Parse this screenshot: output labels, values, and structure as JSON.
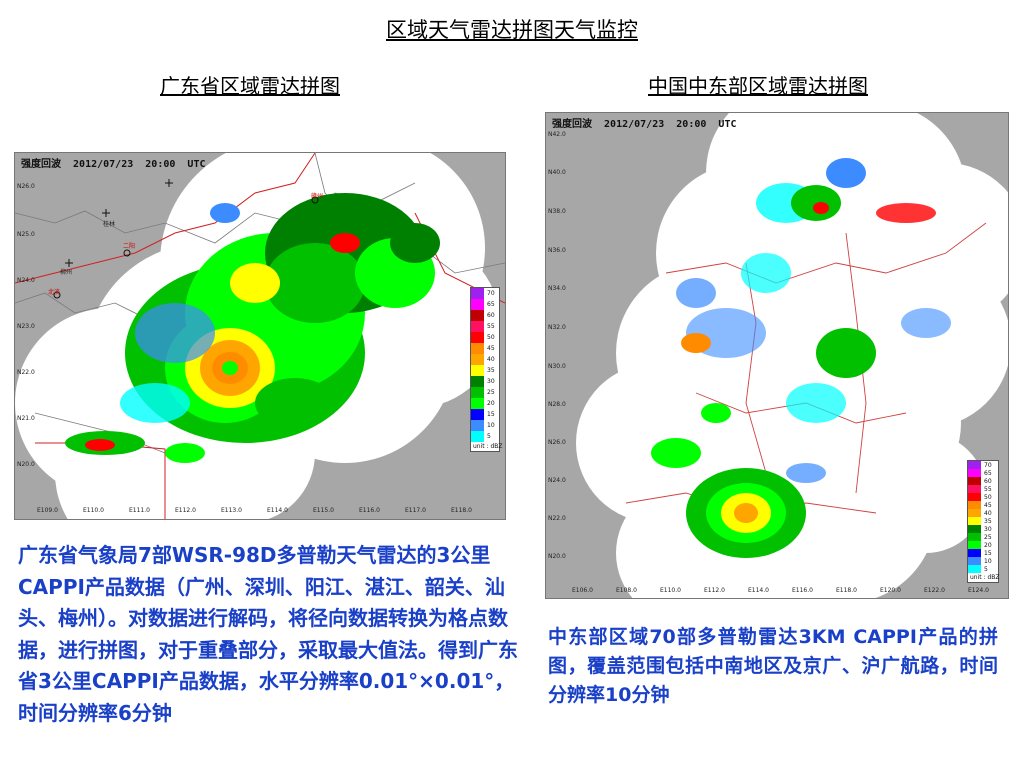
{
  "slide": {
    "title": "区域天气雷达拼图天气监控"
  },
  "left_panel": {
    "subtitle": "广东省区域雷达拼图",
    "map_header": "强度回波  2012/07/23  20:00  UTC",
    "legend_values": [
      "70",
      "65",
      "60",
      "55",
      "50",
      "45",
      "40",
      "35",
      "30",
      "25",
      "20",
      "15",
      "10",
      "5"
    ],
    "legend_unit": "unit : dBZ",
    "x_ticks": [
      "E109.0",
      "E110.0",
      "E111.0",
      "E112.0",
      "E113.0",
      "E114.0",
      "E115.0",
      "E116.0",
      "E117.0",
      "E118.0"
    ],
    "y_ticks": [
      "N26.0",
      "N25.0",
      "N24.0",
      "N23.0",
      "N22.0",
      "N21.0",
      "N20.0"
    ],
    "cities": [
      "桂林",
      "柳州",
      "二阳",
      "北流",
      "赣州"
    ],
    "description": "广东省气象局7部WSR-98D多普勒天气雷达的3公里CAPPI产品数据（广州、深圳、阳江、湛江、韶关、汕头、梅州）。对数据进行解码，将径向数据转换为格点数据，进行拼图，对于重叠部分，采取最大值法。得到广东省3公里CAPPI产品数据，水平分辨率0.01°×0.01°，时间分辨率6分钟"
  },
  "right_panel": {
    "subtitle": "中国中东部区域雷达拼图",
    "map_header": "强度回波  2012/07/23  20:00  UTC",
    "legend_values": [
      "70",
      "65",
      "60",
      "55",
      "50",
      "45",
      "40",
      "35",
      "30",
      "25",
      "20",
      "15",
      "10",
      "5"
    ],
    "legend_unit": "unit : dBZ",
    "x_ticks": [
      "E106.0",
      "E108.0",
      "E110.0",
      "E112.0",
      "E114.0",
      "E116.0",
      "E118.0",
      "E120.0",
      "E122.0",
      "E124.0"
    ],
    "y_ticks": [
      "N42.0",
      "N40.0",
      "N38.0",
      "N36.0",
      "N34.0",
      "N32.0",
      "N30.0",
      "N28.0",
      "N26.0",
      "N24.0",
      "N22.0",
      "N20.0"
    ],
    "description": "中东部区域70部多普勒雷达3KM CAPPI产品的拼图，覆盖范围包括中南地区及京广、沪广航路，时间分辨率10分钟"
  },
  "legend_colors": [
    "#a020f0",
    "#ff00ff",
    "#c00000",
    "#ff1060",
    "#ff0000",
    "#ff8c00",
    "#ffa500",
    "#ffff00",
    "#008000",
    "#00c000",
    "#00ff00",
    "#0000ff",
    "#3c8cff",
    "#00ffff"
  ]
}
